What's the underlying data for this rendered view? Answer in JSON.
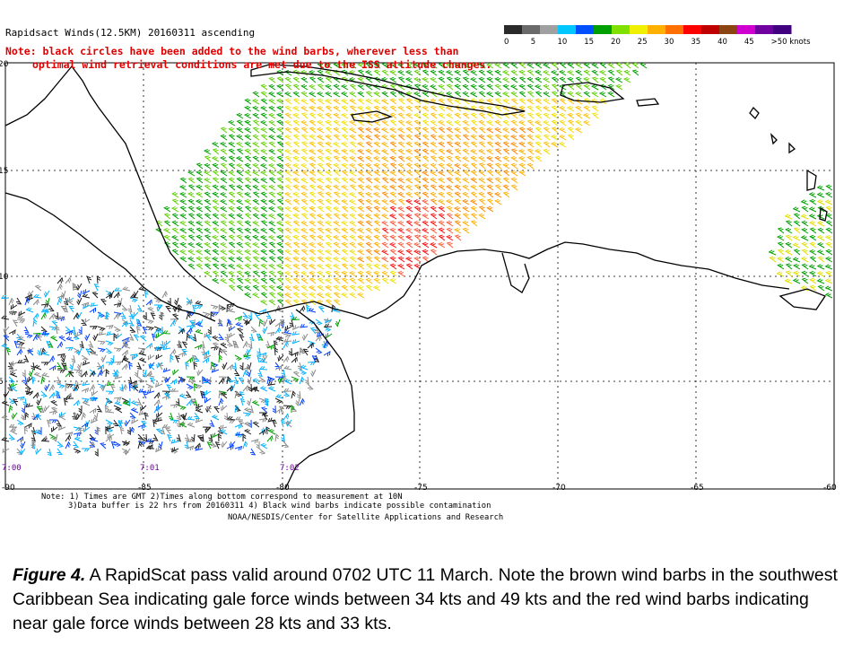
{
  "map": {
    "title": "Rapidsact Winds(12.5KM) 20160311 ascending",
    "note_red_line1": "Note: black circles have been added to the wind barbs, wherever less than",
    "note_red_line2": "optimal wind retrieval conditions are met due to the ISS attitude changes.",
    "legend": {
      "labels": [
        "0",
        "5",
        "10",
        "15",
        "20",
        "25",
        "30",
        "35",
        "40",
        "45",
        ">50 knots"
      ],
      "colors": [
        "#2a2a2a",
        "#6a6a6a",
        "#a0a0a0",
        "#00c8ff",
        "#0050ff",
        "#00a000",
        "#80e000",
        "#f0f000",
        "#ffb000",
        "#ff7000",
        "#ff0000",
        "#c00000",
        "#8b4513",
        "#d000d0",
        "#7000a0",
        "#400080"
      ]
    },
    "lat_labels": [
      "20",
      "15",
      "10",
      "5"
    ],
    "lon_labels": [
      "-90",
      "-85",
      "-80",
      "-75",
      "-70",
      "-65",
      "-60"
    ],
    "time_labels": [
      "7:00",
      "7:01",
      "7:02"
    ],
    "bottom_note1": "Note: 1) Times are GMT 2)Times along bottom correspond to measurement at 10N",
    "bottom_note2": "3)Data buffer is 22 hrs from 20160311 4) Black wind barbs indicate possible contamination",
    "credit": "NOAA/NESDIS/Center for Satellite Applications and Research"
  },
  "caption": {
    "label": "Figure 4.",
    "text": " A RapidScat pass valid around 0702 UTC 11 March. Note the brown wind barbs in the southwest Caribbean Sea indicating gale force winds between 34 kts and 49 kts and the red wind barbs indicating near gale force winds between 28 kts and 33 kts."
  }
}
